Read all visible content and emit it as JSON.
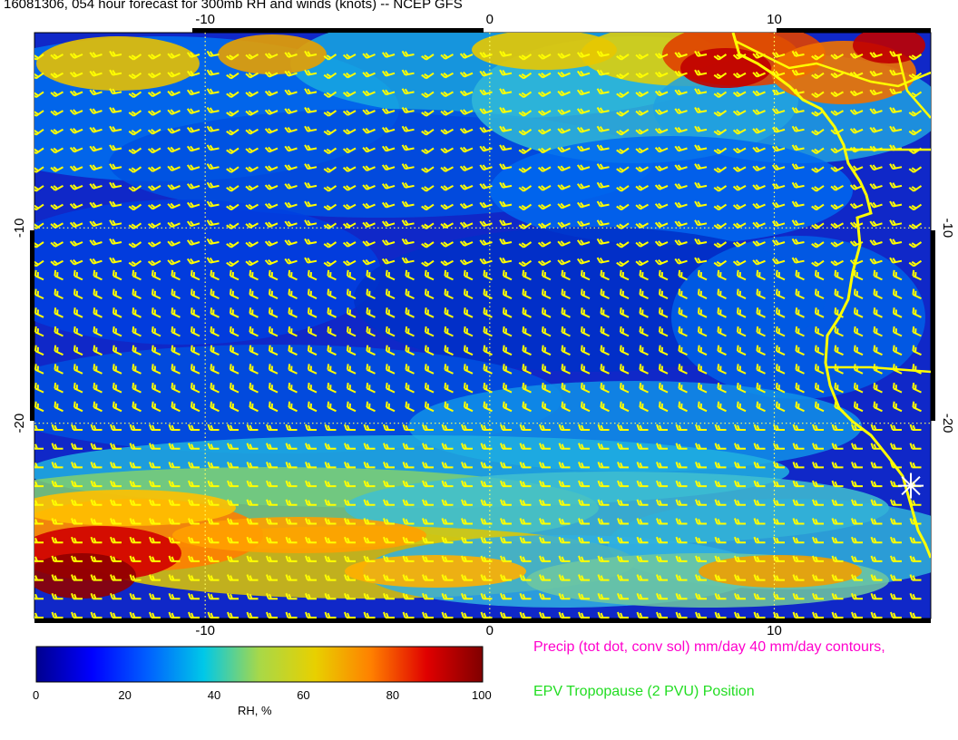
{
  "title": "16081306, 054 hour forecast for 300mb RH and winds (knots) -- NCEP GFS",
  "map": {
    "lon_range": [
      -16,
      15.5
    ],
    "lat_range": [
      -30,
      0
    ],
    "lon_ticks": [
      -10,
      0,
      10
    ],
    "lat_ticks": [
      -10,
      -20
    ],
    "lon_tick_labels": [
      "-10",
      "0",
      "10"
    ],
    "lat_tick_labels": [
      "-10",
      "-20"
    ],
    "grid": "dotted",
    "coastline_color": "#ffff00",
    "barb_color": "#ffff00",
    "marker": {
      "type": "asterisk",
      "lon": 14.8,
      "lat": -23.2,
      "color": "#ffffff"
    }
  },
  "colorbar": {
    "label": "RH, %",
    "ticks": [
      "0",
      "20",
      "40",
      "60",
      "80",
      "100"
    ],
    "range": [
      0,
      100
    ],
    "colors": [
      "#00008f",
      "#0000ff",
      "#0060ff",
      "#00c8e8",
      "#a8d848",
      "#e8d000",
      "#ff8000",
      "#e00000",
      "#800000"
    ]
  },
  "legend": {
    "precip": "Precip (tot dot, conv sol) mm/day 40 mm/day contours,",
    "epv": "EPV Tropopause (2 PVU) Position"
  }
}
